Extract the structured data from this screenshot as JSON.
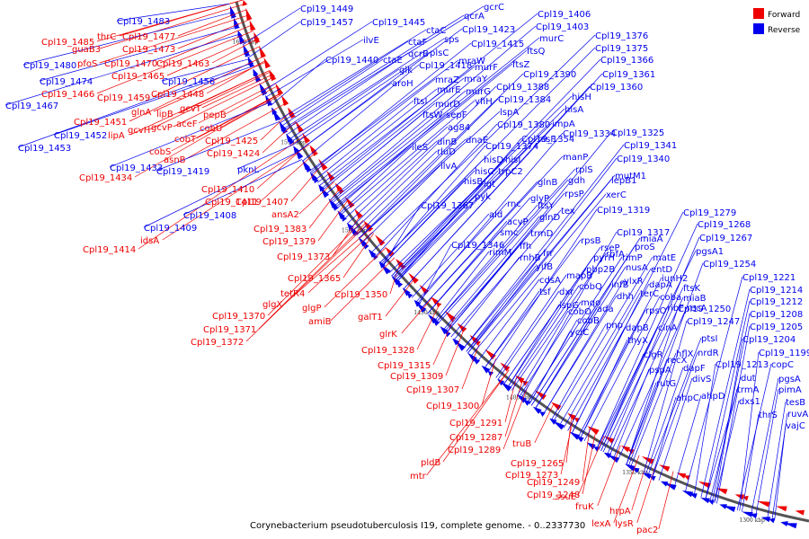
{
  "caption": "Corynebacterium pseudotuberculosis I19, complete genome. - 0..2337730",
  "legend": [
    {
      "label": "Forward",
      "color": "#ee0000"
    },
    {
      "label": "Reverse",
      "color": "#0000ee"
    }
  ],
  "colors": {
    "forward": "#ee0000",
    "reverse": "#0000ee",
    "backbone": "#555555"
  },
  "ticks": [
    "1600 kbp",
    "1550 kbp",
    "1500 kbp",
    "1450 kbp",
    "1400 kbp",
    "1350 kbp",
    "1300 kbp"
  ],
  "forward_labels": [
    "Cpl19_1485",
    "thrC",
    "Cpl19_1477",
    "guaB3",
    "Cpl19_1473",
    "pfoS",
    "Cpl19_1470",
    "Cpl19_1463",
    "Cpl19_1465",
    "Cpl19_1466",
    "Cpl19_1459",
    "Cpl19_1448",
    "gcvT",
    "glnA",
    "lipB",
    "gcvP",
    "aceF",
    "pepB",
    "Cpl19_1451",
    "gcvH",
    "cobU",
    "lipA",
    "cobT",
    "Cpl19_1425",
    "cobS",
    "Cpl19_1424",
    "asnB",
    "Cpl19_1434",
    "Cpl19_1410",
    "Cpl19_1411",
    "Cpl19_1407",
    "ansA2",
    "Cpl19_1383",
    "Cpl19_1379",
    "Cpl19_1414",
    "idsA",
    "Cpl19_1373",
    "Cpl19_1365",
    "tetR4",
    "Cpl19_1350",
    "glgX",
    "glgP",
    "amiB",
    "galT1",
    "Cpl19_1370",
    "Cpl19_1371",
    "Cpl19_1372",
    "glrK",
    "Cpl19_1328",
    "Cpl19_1315",
    "Cpl19_1309",
    "Cpl19_1307",
    "Cpl19_1300",
    "Cpl19_1291",
    "Cpl19_1287",
    "Cpl19_1289",
    "truB",
    "pldB",
    "mtr",
    "Cpl19_1265",
    "Cpl19_1273",
    "Cpl19_1249",
    "Cpl19_1248",
    "ssuE",
    "fruK",
    "hrpA",
    "lexA",
    "lysR",
    "pac2"
  ],
  "reverse_labels": [
    "Cpl19_1483",
    "Cpl19_1480",
    "Cpl19_1474",
    "Cpl19_1456",
    "Cpl19_1467",
    "Cpl19_1452",
    "Cpl19_1453",
    "Cpl19_1433",
    "Cpl19_1419",
    "pknL",
    "Cpl19_1408",
    "Cpl19_1409",
    "Cpl19_1449",
    "Cpl19_1457",
    "Cpl19_1445",
    "ilvE",
    "ctaF",
    "ctaC",
    "sps",
    "Cpl19_1423",
    "gcrC",
    "qcrA",
    "Cpl19_1406",
    "Cpl19_1403",
    "Cpl19_1440",
    "ctaE",
    "qcrB",
    "plsC",
    "Cpl19_1415",
    "murC",
    "ftsQ",
    "glk",
    "Cpl19_1418",
    "mraW",
    "murF",
    "ftsZ",
    "aroH",
    "mraZ",
    "mraY",
    "Cpl19_1390",
    "ftsI",
    "murE",
    "murG",
    "Cpl19_1388",
    "murD",
    "yfiH",
    "ftsW",
    "sepF",
    "Cpl19_1384",
    "ag84",
    "lspA",
    "Cpl19_1380",
    "dinB",
    "dnaE",
    "ileS",
    "rluD",
    "Cpl19_1374",
    "ilvA",
    "hisD",
    "hisI",
    "hisC",
    "trpC2",
    "hisB",
    "lgt",
    "pyk",
    "Cpl19_1367",
    "ald",
    "rnc",
    "acyP",
    "smc",
    "Cpl19_1346",
    "ffh",
    "trmD",
    "rimM",
    "rnhB",
    "frr",
    "yifB",
    "cdsA",
    "tsf",
    "dxr",
    "ispG",
    "Cpl19_1376",
    "Cpl19_1375",
    "Cpl19_1366",
    "Cpl19_1361",
    "Cpl19_1360",
    "hisH",
    "hisA",
    "impA",
    "hisF",
    "Cpl19_1354",
    "Cpl19_1334",
    "Cpl19_1325",
    "Cpl19_1341",
    "manP",
    "Cpl19_1340",
    "rplS",
    "mutM1",
    "gdh",
    "glnB",
    "glyP",
    "rpsP",
    "ftsY",
    "tex",
    "glnD",
    "lepB1",
    "xerC",
    "Cpl19_1319",
    "Cpl19_1317",
    "rpsB",
    "rseP",
    "pyrH",
    "pbp2B",
    "mapB",
    "cobQ",
    "mqo",
    "cobO",
    "cobB",
    "ada",
    "yciC",
    "dhh",
    "infB",
    "ylxR",
    "nusA",
    "rimP",
    "proS",
    "rbfA",
    "rpsO",
    "pnp",
    "dapB",
    "thyX",
    "cinA",
    "clgR",
    "pspA",
    "recX",
    "rutG",
    "hflX",
    "dapF",
    "ptsI",
    "nrdR",
    "divS",
    "ahpD",
    "ahpC",
    "miaA",
    "matE",
    "entD",
    "iunH2",
    "ftsK",
    "miaB",
    "recA",
    "dapA",
    "coba",
    "ribF",
    "terC",
    "Cpl19_1279",
    "Cpl19_1268",
    "Cpl19_1267",
    "pgsA1",
    "Cpl19_1254",
    "Cpl19_1250",
    "Cpl19_1247",
    "Cpl19_1221",
    "Cpl19_1214",
    "Cpl19_1212",
    "Cpl19_1208",
    "Cpl19_1205",
    "Cpl19_1204",
    "Cpl19_1199",
    "copC",
    "Cpl19_1213",
    "dut",
    "trmA",
    "dxs1",
    "pgsA",
    "pimA",
    "tesB",
    "ruvA",
    "vajC",
    "thrS"
  ]
}
